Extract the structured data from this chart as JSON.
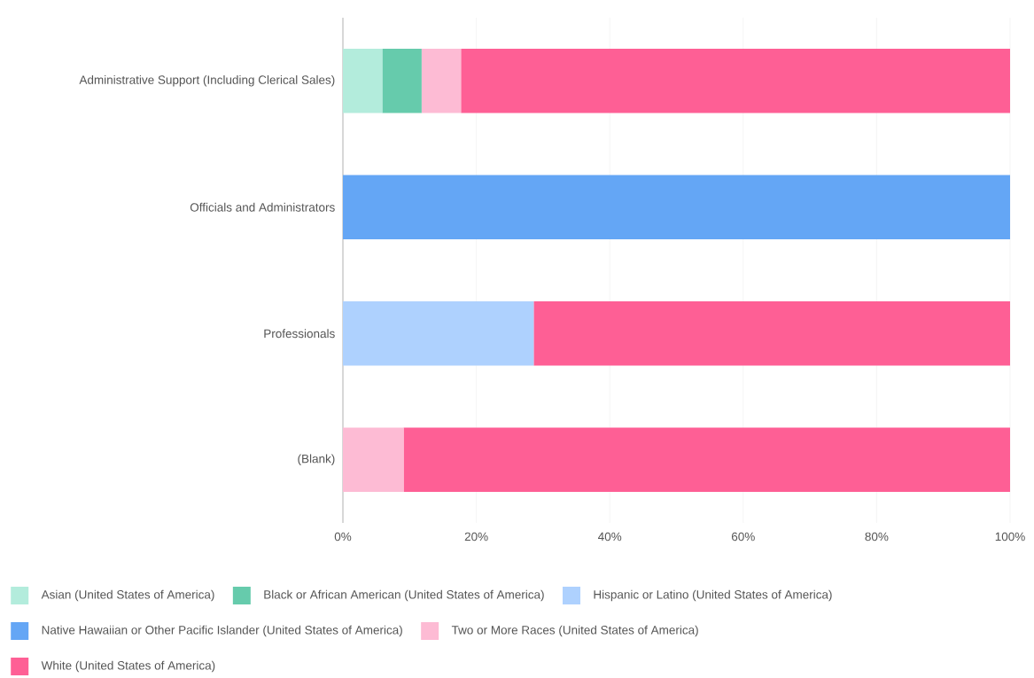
{
  "chart_data": {
    "type": "bar",
    "orientation": "horizontal",
    "stacked": true,
    "categories": [
      "Administrative Support (Including Clerical Sales)",
      "Officials and Administrators",
      "Professionals",
      "(Blank)"
    ],
    "series": [
      {
        "name": "Asian (United States of America)",
        "color": "#b3ecdc",
        "values": [
          5.9,
          0,
          0,
          0
        ]
      },
      {
        "name": "Black or African American (United States of America)",
        "color": "#66cbac",
        "values": [
          5.9,
          0,
          0,
          0
        ]
      },
      {
        "name": "Hispanic or Latino (United States of America)",
        "color": "#aed1fe",
        "values": [
          0,
          0,
          28.6,
          0
        ]
      },
      {
        "name": "Native Hawaiian or Other Pacific Islander (United States of America)",
        "color": "#64a6f5",
        "values": [
          0,
          100,
          0,
          0
        ]
      },
      {
        "name": "Two or More Races (United States of America)",
        "color": "#fdbbd4",
        "values": [
          5.9,
          0,
          0,
          9.1
        ]
      },
      {
        "name": "White (United States of America)",
        "color": "#fe5f95",
        "values": [
          82.3,
          0,
          71.4,
          90.9
        ]
      }
    ],
    "xlim": [
      0,
      100
    ],
    "xticks": [
      {
        "value": 0,
        "label": "0%"
      },
      {
        "value": 20,
        "label": "20%"
      },
      {
        "value": 40,
        "label": "40%"
      },
      {
        "value": 60,
        "label": "60%"
      },
      {
        "value": 80,
        "label": "80%"
      },
      {
        "value": 100,
        "label": "100%"
      }
    ],
    "grid": "x",
    "legend": "bottom"
  }
}
